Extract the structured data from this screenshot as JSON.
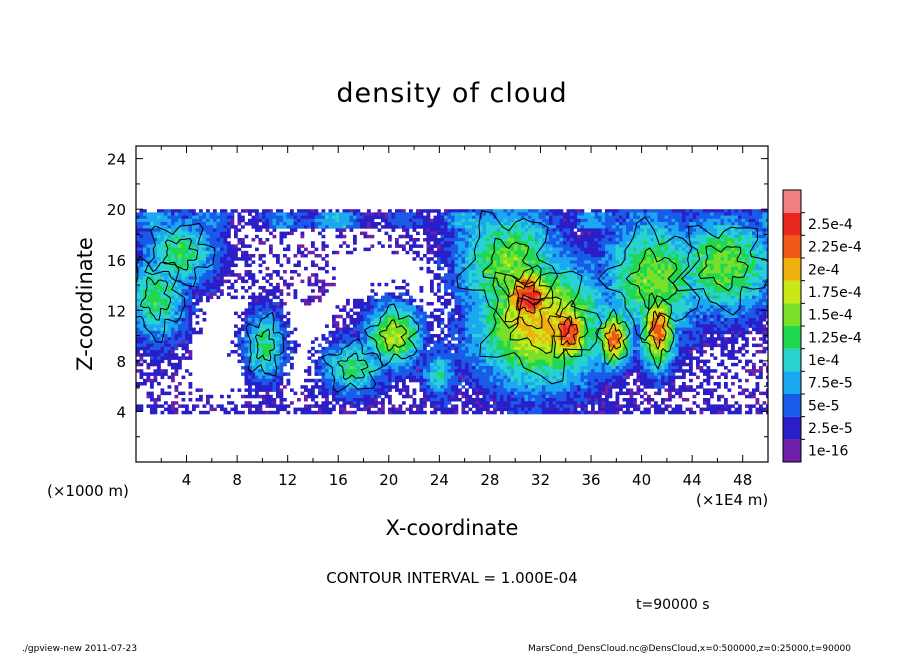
{
  "chart_data": {
    "type": "heatmap",
    "title": "density of cloud",
    "xlabel": "X-coordinate",
    "ylabel": "Z-coordinate",
    "x_unit_left": "(×1000 m)",
    "x_unit_right": "(×1E4 m)",
    "xlim": [
      0,
      50
    ],
    "ylim": [
      0,
      25
    ],
    "x_ticks": [
      "4",
      "8",
      "12",
      "16",
      "20",
      "24",
      "28",
      "32",
      "36",
      "40",
      "44",
      "48"
    ],
    "y_ticks": [
      "4",
      "8",
      "12",
      "16",
      "20",
      "24"
    ],
    "contour_interval_text": "CONTOUR INTERVAL = 1.000E-04",
    "time_text": "t=90000 s",
    "footer_left": "./gpview-new   2011-07-23",
    "footer_right": "MarsCond_DensCloud.nc@DensCloud,x=0:500000,z=0:25000,t=90000",
    "colorbar": {
      "labels": [
        "1e-16",
        "2.5e-5",
        "5e-5",
        "7.5e-5",
        "1e-4",
        "1.25e-4",
        "1.5e-4",
        "1.75e-4",
        "2e-4",
        "2.25e-4",
        "2.5e-4"
      ],
      "colors": [
        "#6e1fa8",
        "#2a1ec8",
        "#1a5ae8",
        "#1aa8f0",
        "#28d2d0",
        "#20d850",
        "#78e028",
        "#c8e818",
        "#f0b010",
        "#f05818",
        "#e82820",
        "#f08080"
      ]
    },
    "cloud_layer_z": [
      4,
      20
    ],
    "blobs": [
      {
        "x": 1.6,
        "z": 13,
        "rx": 1.8,
        "rz": 2.6,
        "level": 5
      },
      {
        "x": 3.5,
        "z": 16.5,
        "rx": 2.2,
        "rz": 2.0,
        "level": 5
      },
      {
        "x": 10.2,
        "z": 9.2,
        "rx": 1.2,
        "rz": 2.0,
        "level": 5
      },
      {
        "x": 17.2,
        "z": 7.5,
        "rx": 1.8,
        "rz": 1.6,
        "level": 5
      },
      {
        "x": 20.4,
        "z": 10.0,
        "rx": 1.6,
        "rz": 1.8,
        "level": 7
      },
      {
        "x": 24.0,
        "z": 7.0,
        "rx": 1.0,
        "rz": 1.5,
        "level": 4
      },
      {
        "x": 29.5,
        "z": 15.5,
        "rx": 3.0,
        "rz": 3.5,
        "level": 6
      },
      {
        "x": 32.0,
        "z": 11.0,
        "rx": 3.8,
        "rz": 3.6,
        "level": 8
      },
      {
        "x": 31.0,
        "z": 13.0,
        "rx": 1.6,
        "rz": 2.0,
        "level": 10
      },
      {
        "x": 34.2,
        "z": 10.3,
        "rx": 1.2,
        "rz": 1.8,
        "level": 10
      },
      {
        "x": 37.8,
        "z": 9.8,
        "rx": 1.0,
        "rz": 1.6,
        "level": 9
      },
      {
        "x": 41.0,
        "z": 14.5,
        "rx": 3.0,
        "rz": 3.5,
        "level": 6
      },
      {
        "x": 41.3,
        "z": 10.5,
        "rx": 1.0,
        "rz": 2.2,
        "level": 9
      },
      {
        "x": 46.5,
        "z": 15.5,
        "rx": 3.0,
        "rz": 2.8,
        "level": 6
      }
    ]
  }
}
